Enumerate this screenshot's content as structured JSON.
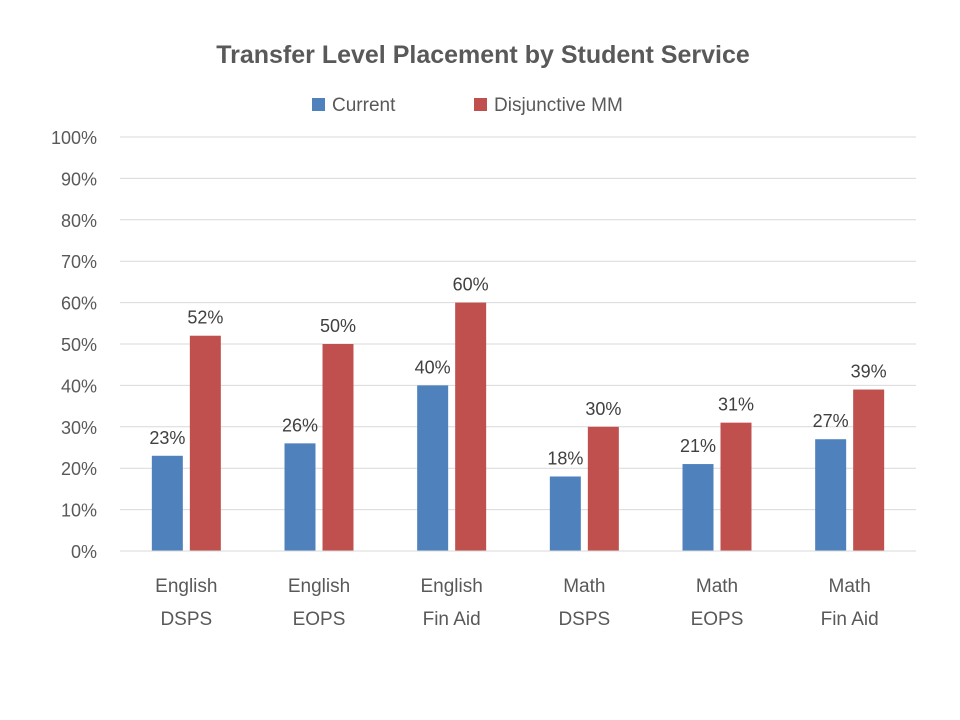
{
  "chart_data": {
    "type": "bar",
    "title": "Transfer Level Placement by Student Service",
    "categories": [
      [
        "English",
        "DSPS"
      ],
      [
        "English",
        "EOPS"
      ],
      [
        "English",
        "Fin Aid"
      ],
      [
        "Math",
        "DSPS"
      ],
      [
        "Math",
        "EOPS"
      ],
      [
        "Math",
        "Fin Aid"
      ]
    ],
    "series": [
      {
        "name": "Current",
        "values": [
          23,
          26,
          40,
          18,
          21,
          27
        ],
        "labels": [
          "23%",
          "26%",
          "40%",
          "18%",
          "21%",
          "27%"
        ],
        "color": "#4f81bd"
      },
      {
        "name": "Disjunctive MM",
        "values": [
          52,
          50,
          60,
          30,
          31,
          39
        ],
        "labels": [
          "52%",
          "50%",
          "60%",
          "30%",
          "31%",
          "39%"
        ],
        "color": "#c0504d"
      }
    ],
    "ylim": [
      0,
      100
    ],
    "yticks": [
      "0%",
      "10%",
      "20%",
      "30%",
      "40%",
      "50%",
      "60%",
      "70%",
      "80%",
      "90%",
      "100%"
    ],
    "unit": "%",
    "grid": true,
    "legend": "top"
  }
}
